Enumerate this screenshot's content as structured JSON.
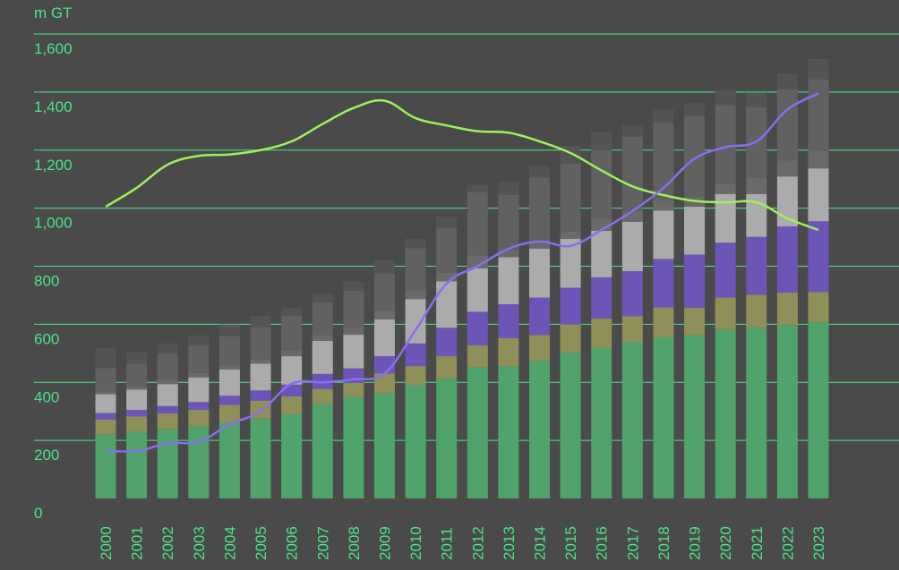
{
  "colors": {
    "background": "#4a4a4a",
    "text": "#4ee38a",
    "grid": "#4ee38a",
    "line_green": "#9cf25a",
    "line_purple": "#8a6ef0"
  },
  "chart_data": {
    "type": "bar",
    "stacked": true,
    "unit_label": "m GT",
    "categories": [
      "2000",
      "2001",
      "2002",
      "2003",
      "2004",
      "2005",
      "2006",
      "2007",
      "2008",
      "2009",
      "2010",
      "2011",
      "2012",
      "2013",
      "2014",
      "2015",
      "2016",
      "2017",
      "2018",
      "2019",
      "2020",
      "2021",
      "2022",
      "2023"
    ],
    "ylim": [
      0,
      1600
    ],
    "yticks": [
      0,
      200,
      400,
      600,
      800,
      1000,
      1200,
      1400,
      1600
    ],
    "ytick_labels": [
      "0",
      "200",
      "400",
      "600",
      "800",
      "1,000",
      "1,200",
      "1,400",
      "1,600"
    ],
    "grid": true,
    "legend": "none",
    "series": [
      {
        "color": "#4fa36b",
        "values": [
          220,
          230,
          238,
          248,
          262,
          275,
          290,
          325,
          350,
          362,
          390,
          412,
          452,
          455,
          475,
          502,
          518,
          538,
          555,
          562,
          580,
          588,
          597,
          607
        ]
      },
      {
        "color": "#8f8f5a",
        "values": [
          52,
          53,
          55,
          58,
          60,
          62,
          62,
          52,
          48,
          68,
          66,
          78,
          76,
          97,
          88,
          97,
          102,
          90,
          103,
          95,
          112,
          114,
          112,
          104
        ]
      },
      {
        "color": "#6d55b8",
        "values": [
          22,
          22,
          25,
          26,
          32,
          35,
          40,
          52,
          50,
          60,
          78,
          98,
          115,
          117,
          129,
          127,
          142,
          155,
          167,
          183,
          189,
          199,
          228,
          244
        ]
      },
      {
        "color": "#ababab",
        "values": [
          65,
          70,
          76,
          85,
          90,
          92,
          98,
          114,
          116,
          127,
          153,
          160,
          150,
          162,
          168,
          168,
          160,
          170,
          167,
          165,
          168,
          148,
          172,
          182
        ]
      },
      {
        "color": "#6a6a6a",
        "values": [
          10,
          10,
          15,
          15,
          15,
          15,
          20,
          20,
          25,
          30,
          30,
          30,
          45,
          25,
          30,
          25,
          40,
          35,
          35,
          35,
          35,
          55,
          55,
          60
        ]
      },
      {
        "color": "#616161",
        "values": [
          80,
          80,
          90,
          95,
          100,
          110,
          120,
          112,
          126,
          128,
          145,
          153,
          217,
          190,
          215,
          235,
          237,
          258,
          268,
          277,
          271,
          244,
          245,
          247
        ]
      },
      {
        "color": "#545454",
        "values": [
          70,
          40,
          35,
          35,
          40,
          40,
          25,
          32,
          33,
          45,
          33,
          40,
          25,
          45,
          40,
          60,
          65,
          40,
          45,
          45,
          50,
          50,
          55,
          70
        ]
      }
    ],
    "lines": [
      {
        "color": "#9cf25a",
        "values": [
          1005,
          1070,
          1150,
          1180,
          1185,
          1200,
          1230,
          1290,
          1345,
          1370,
          1310,
          1285,
          1265,
          1260,
          1230,
          1190,
          1130,
          1075,
          1045,
          1025,
          1020,
          1020,
          965,
          925
        ]
      },
      {
        "color": "#8a6ef0",
        "values": [
          165,
          163,
          190,
          195,
          255,
          300,
          395,
          400,
          410,
          430,
          580,
          740,
          800,
          860,
          885,
          870,
          925,
          990,
          1070,
          1170,
          1210,
          1230,
          1340,
          1395
        ]
      }
    ]
  }
}
